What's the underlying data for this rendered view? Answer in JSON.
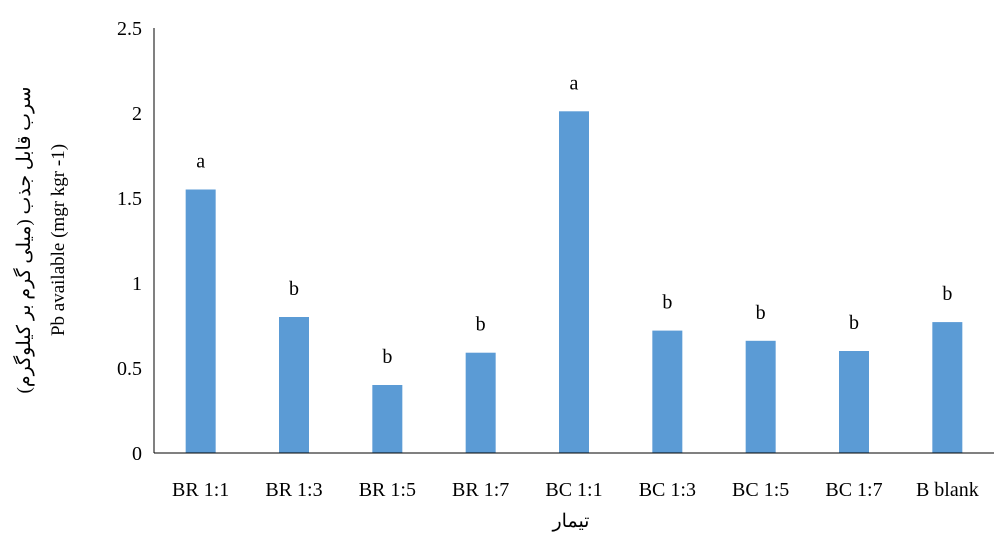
{
  "chart_data": {
    "type": "bar",
    "categories": [
      "BR 1:1",
      "BR 1:3",
      "BR 1:5",
      "BR 1:7",
      "BC 1:1",
      "BC 1:3",
      "BC 1:5",
      "BC 1:7",
      "B blank"
    ],
    "values": [
      1.55,
      0.8,
      0.4,
      0.59,
      2.01,
      0.72,
      0.66,
      0.6,
      0.77
    ],
    "significance_labels": [
      "a",
      "b",
      "b",
      "b",
      "a",
      "b",
      "b",
      "b",
      "b"
    ],
    "xlabel": "تیمار",
    "ylabel": "Pb available (mgr kgr -1)",
    "ylabel_persian": "سرب قابل جذب (میلی گرم بر کیلوگرم)",
    "ylim": [
      0,
      2.5
    ],
    "yticks": [
      "0",
      "0.5",
      "1",
      "1.5",
      "2",
      "2.5"
    ],
    "grid": false,
    "legend": "none",
    "bar_color": "#5b9bd5"
  }
}
